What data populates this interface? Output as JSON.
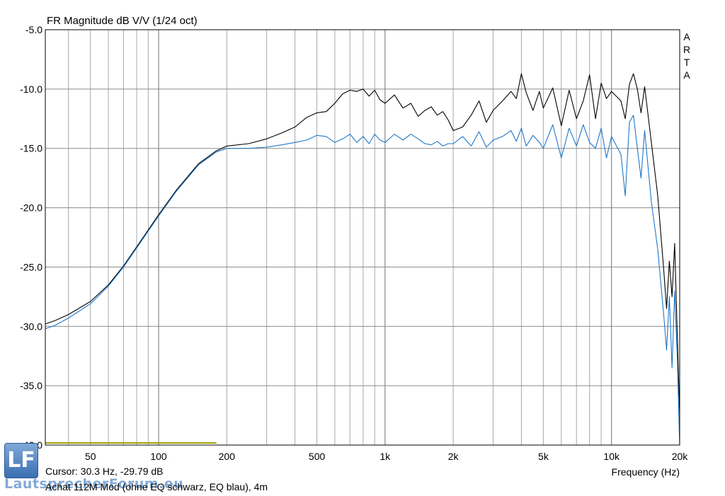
{
  "chart_data": {
    "type": "line",
    "title": "FR Magnitude dB V/V (1/24 oct)",
    "xlabel": "Frequency (Hz)",
    "ylabel": "",
    "x_scale": "log",
    "xlim": [
      31.6,
      20000
    ],
    "ylim": [
      -40,
      -5
    ],
    "grid": true,
    "x_ticks": [
      {
        "v": 50,
        "label": "50"
      },
      {
        "v": 100,
        "label": "100"
      },
      {
        "v": 200,
        "label": "200"
      },
      {
        "v": 500,
        "label": "500"
      },
      {
        "v": 1000,
        "label": "1k"
      },
      {
        "v": 2000,
        "label": "2k"
      },
      {
        "v": 5000,
        "label": "5k"
      },
      {
        "v": 10000,
        "label": "10k"
      },
      {
        "v": 20000,
        "label": "20k"
      }
    ],
    "y_ticks": [
      {
        "v": -5,
        "label": "-5.0"
      },
      {
        "v": -10,
        "label": "-10.0"
      },
      {
        "v": -15,
        "label": "-15.0"
      },
      {
        "v": -20,
        "label": "-20.0"
      },
      {
        "v": -25,
        "label": "-25.0"
      },
      {
        "v": -30,
        "label": "-30.0"
      },
      {
        "v": -35,
        "label": "-35.0"
      },
      {
        "v": -40,
        "label": "-40.0"
      }
    ],
    "series": [
      {
        "color": "#000000",
        "x": [
          31.6,
          35,
          40,
          50,
          60,
          70,
          80,
          100,
          120,
          150,
          180,
          200,
          250,
          300,
          350,
          400,
          450,
          500,
          550,
          600,
          650,
          700,
          750,
          800,
          850,
          900,
          950,
          1000,
          1100,
          1200,
          1300,
          1400,
          1500,
          1600,
          1700,
          1800,
          1900,
          2000,
          2200,
          2400,
          2600,
          2800,
          3000,
          3300,
          3600,
          3800,
          4000,
          4200,
          4500,
          4800,
          5000,
          5500,
          6000,
          6500,
          7000,
          7500,
          8000,
          8500,
          9000,
          9500,
          10000,
          11000,
          11500,
          12000,
          12500,
          13000,
          13500,
          14000,
          15000,
          16000,
          17000,
          17500,
          18000,
          18500,
          19000,
          19500,
          20000
        ],
        "y": [
          -29.8,
          -29.5,
          -29.0,
          -27.9,
          -26.5,
          -24.9,
          -23.3,
          -20.6,
          -18.5,
          -16.3,
          -15.2,
          -14.8,
          -14.6,
          -14.2,
          -13.7,
          -13.2,
          -12.4,
          -12.0,
          -11.9,
          -11.2,
          -10.4,
          -10.1,
          -10.2,
          -10.0,
          -10.6,
          -10.1,
          -10.9,
          -11.2,
          -10.5,
          -11.6,
          -11.2,
          -12.3,
          -11.8,
          -11.5,
          -12.2,
          -11.9,
          -12.6,
          -13.5,
          -13.2,
          -12.2,
          -11.0,
          -12.8,
          -11.8,
          -11.0,
          -10.2,
          -10.8,
          -8.7,
          -10.3,
          -11.8,
          -10.2,
          -11.6,
          -9.9,
          -13.1,
          -10.1,
          -12.5,
          -11.0,
          -8.8,
          -12.5,
          -9.5,
          -10.8,
          -10.2,
          -11.0,
          -12.5,
          -9.6,
          -8.7,
          -10.0,
          -12.0,
          -9.8,
          -14.5,
          -19.0,
          -25.2,
          -28.5,
          -24.5,
          -27.5,
          -23.0,
          -30.5,
          -37.5
        ]
      },
      {
        "color": "#1f78c8",
        "x": [
          31.6,
          35,
          40,
          50,
          60,
          70,
          80,
          100,
          120,
          150,
          180,
          200,
          250,
          300,
          350,
          400,
          450,
          500,
          550,
          600,
          650,
          700,
          750,
          800,
          850,
          900,
          950,
          1000,
          1100,
          1200,
          1300,
          1400,
          1500,
          1600,
          1700,
          1800,
          1900,
          2000,
          2200,
          2400,
          2600,
          2800,
          3000,
          3300,
          3600,
          3800,
          4000,
          4200,
          4500,
          4800,
          5000,
          5500,
          6000,
          6500,
          7000,
          7500,
          8000,
          8500,
          9000,
          9500,
          10000,
          11000,
          11500,
          12000,
          12500,
          13000,
          13500,
          14000,
          15000,
          16000,
          17000,
          17500,
          18000,
          18500,
          19000,
          19500,
          20000
        ],
        "y": [
          -30.2,
          -29.9,
          -29.3,
          -28.1,
          -26.6,
          -25.0,
          -23.4,
          -20.7,
          -18.6,
          -16.4,
          -15.3,
          -15.0,
          -15.0,
          -14.9,
          -14.7,
          -14.5,
          -14.3,
          -13.9,
          -14.0,
          -14.5,
          -14.2,
          -13.8,
          -14.5,
          -14.0,
          -14.6,
          -13.8,
          -14.3,
          -14.5,
          -13.8,
          -14.3,
          -13.8,
          -14.2,
          -14.6,
          -14.7,
          -14.4,
          -14.8,
          -14.6,
          -14.6,
          -14.0,
          -14.8,
          -13.6,
          -14.9,
          -14.3,
          -14.0,
          -13.5,
          -14.4,
          -13.3,
          -14.8,
          -13.9,
          -14.5,
          -15.0,
          -13.0,
          -15.8,
          -13.3,
          -14.8,
          -13.0,
          -14.5,
          -15.0,
          -13.3,
          -15.8,
          -14.0,
          -15.5,
          -19.0,
          -12.8,
          -12.2,
          -15.0,
          -17.5,
          -13.5,
          -19.5,
          -23.5,
          -29.0,
          -32.0,
          -27.5,
          -33.5,
          -27.0,
          -32.5,
          -40.0
        ]
      }
    ],
    "reference_line": {
      "color": "#a0a000",
      "x": [
        31.6,
        180
      ],
      "y": [
        -40,
        -40
      ]
    },
    "side_label": [
      "A",
      "R",
      "T",
      "A"
    ]
  },
  "title": "FR Magnitude dB V/V (1/24 oct)",
  "cursor_text": "Cursor: 30.3 Hz, -29.79 dB",
  "caption": "Achat 112M Mod (ohne EQ schwarz, EQ blau), 4m",
  "watermark": {
    "logo_letters": "LF",
    "site": "LautsprecherForum.eu"
  }
}
